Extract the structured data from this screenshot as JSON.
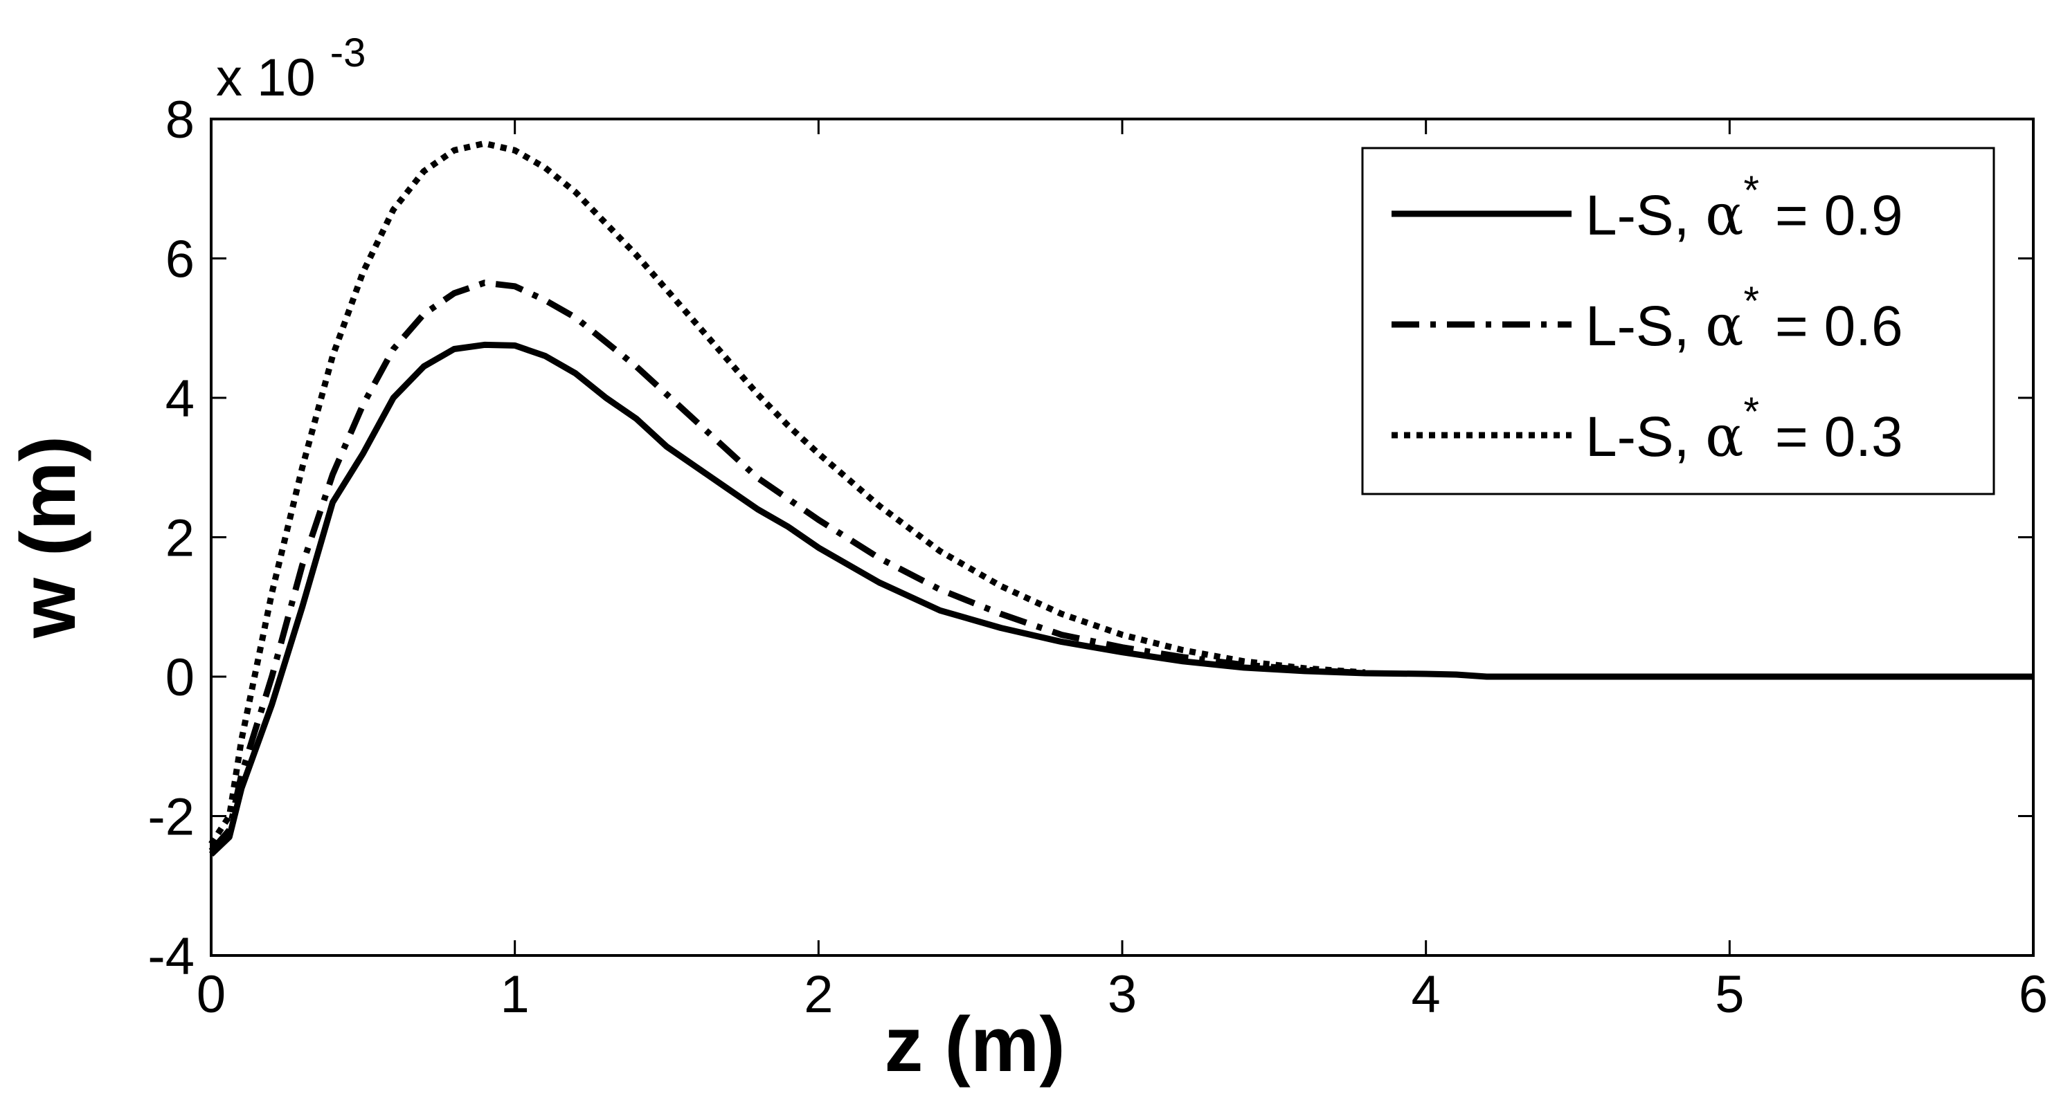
{
  "chart_data": {
    "type": "line",
    "xlabel": "z (m)",
    "ylabel": "w (m)",
    "y_exponent_label": "x 10",
    "y_exponent_power": "-3",
    "xlim": [
      0,
      6
    ],
    "ylim": [
      -4,
      8
    ],
    "x_ticks": [
      "0",
      "1",
      "2",
      "3",
      "4",
      "5",
      "6"
    ],
    "y_ticks": [
      "-4",
      "-2",
      "0",
      "2",
      "4",
      "6",
      "8"
    ],
    "grid": false,
    "legend_position": "top-right",
    "series": [
      {
        "name": "L-S, α* = 0.9",
        "legend_prefix": "L-S, ",
        "legend_symbol": "α",
        "legend_sup": "*",
        "legend_suffix": " = 0.9",
        "line_style": "solid",
        "color": "#000000",
        "x": [
          0,
          0.06,
          0.1,
          0.2,
          0.3,
          0.4,
          0.5,
          0.6,
          0.7,
          0.8,
          0.9,
          1.0,
          1.1,
          1.2,
          1.3,
          1.4,
          1.5,
          1.6,
          1.7,
          1.8,
          1.9,
          2.0,
          2.2,
          2.4,
          2.6,
          2.8,
          3.0,
          3.2,
          3.4,
          3.6,
          3.8,
          4.0,
          4.1,
          4.2,
          5.0,
          6.0
        ],
        "y": [
          -2.55,
          -2.3,
          -1.6,
          -0.4,
          1.0,
          2.5,
          3.2,
          4.0,
          4.45,
          4.7,
          4.76,
          4.75,
          4.6,
          4.35,
          4.0,
          3.7,
          3.3,
          3.0,
          2.7,
          2.4,
          2.15,
          1.85,
          1.35,
          0.95,
          0.7,
          0.5,
          0.35,
          0.22,
          0.13,
          0.08,
          0.05,
          0.04,
          0.03,
          0.0,
          0.0,
          0.0
        ]
      },
      {
        "name": "L-S, α* = 0.6",
        "legend_prefix": "L-S, ",
        "legend_symbol": "α",
        "legend_sup": "*",
        "legend_suffix": " = 0.6",
        "line_style": "dash-dot",
        "color": "#000000",
        "x": [
          0,
          0.06,
          0.1,
          0.2,
          0.3,
          0.4,
          0.5,
          0.6,
          0.7,
          0.8,
          0.9,
          1.0,
          1.1,
          1.2,
          1.3,
          1.4,
          1.5,
          1.6,
          1.7,
          1.8,
          1.9,
          2.0,
          2.2,
          2.4,
          2.6,
          2.8,
          3.0,
          3.2,
          3.4,
          3.6,
          3.8
        ],
        "y": [
          -2.5,
          -2.2,
          -1.4,
          0.0,
          1.6,
          2.9,
          3.9,
          4.7,
          5.2,
          5.5,
          5.65,
          5.6,
          5.4,
          5.15,
          4.8,
          4.45,
          4.05,
          3.65,
          3.25,
          2.85,
          2.55,
          2.25,
          1.7,
          1.25,
          0.9,
          0.6,
          0.42,
          0.28,
          0.17,
          0.1,
          0.05
        ]
      },
      {
        "name": "L-S, α* = 0.3",
        "legend_prefix": "L-S, ",
        "legend_symbol": "α",
        "legend_sup": "*",
        "legend_suffix": " = 0.3",
        "line_style": "dotted",
        "color": "#000000",
        "x": [
          0,
          0.06,
          0.1,
          0.2,
          0.3,
          0.4,
          0.5,
          0.6,
          0.7,
          0.8,
          0.9,
          1.0,
          1.1,
          1.2,
          1.3,
          1.4,
          1.5,
          1.6,
          1.7,
          1.8,
          1.9,
          2.0,
          2.2,
          2.4,
          2.6,
          2.8,
          3.0,
          3.2,
          3.4,
          3.6,
          3.8
        ],
        "y": [
          -2.4,
          -2.0,
          -0.9,
          1.2,
          3.0,
          4.6,
          5.8,
          6.7,
          7.25,
          7.55,
          7.65,
          7.55,
          7.3,
          6.95,
          6.5,
          6.05,
          5.55,
          5.05,
          4.55,
          4.05,
          3.6,
          3.2,
          2.45,
          1.8,
          1.3,
          0.9,
          0.6,
          0.38,
          0.22,
          0.12,
          0.06
        ]
      }
    ]
  }
}
